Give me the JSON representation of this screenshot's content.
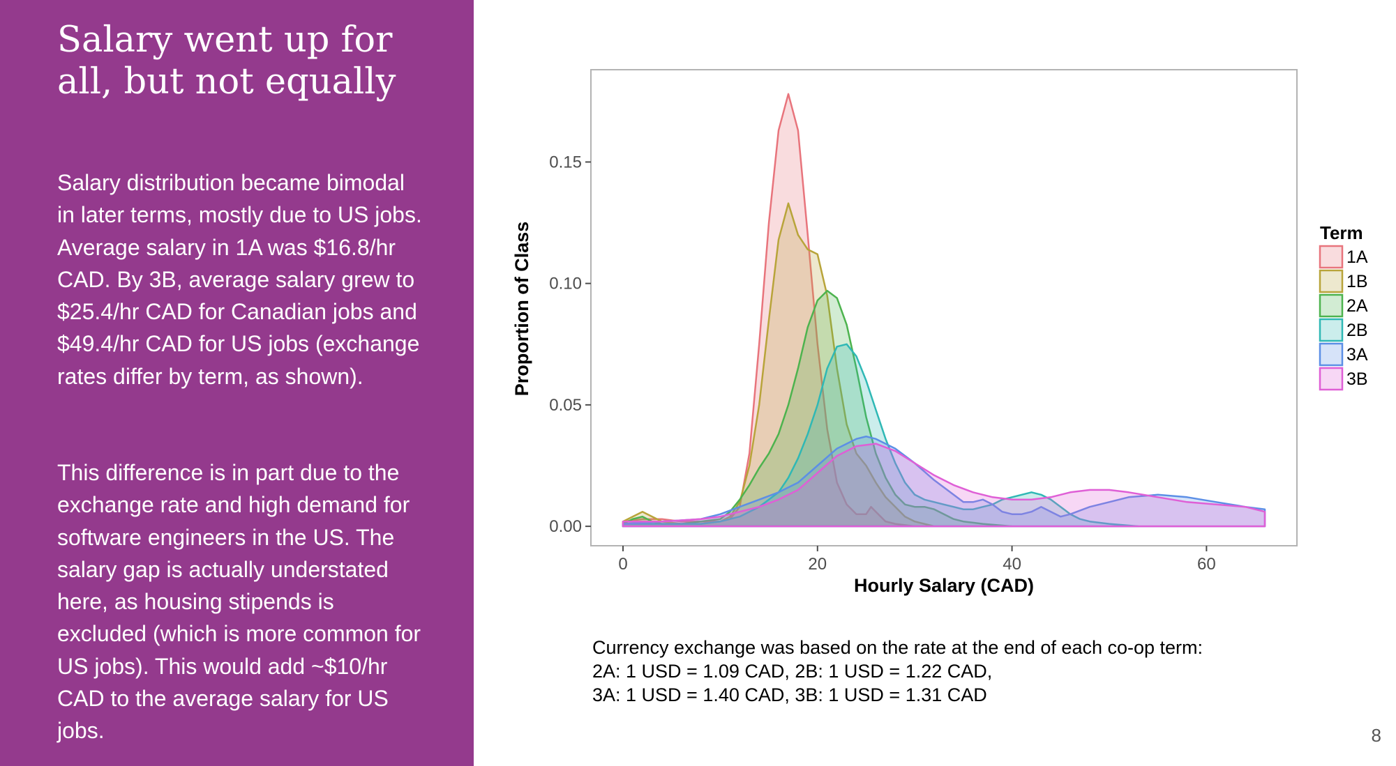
{
  "slide": {
    "title": "Salary went up for all, but not equally",
    "paragraph1": "Salary distribution became bimodal in later terms, mostly due to US jobs. Average salary in 1A was $16.8/hr CAD. By 3B, average salary grew to $25.4/hr CAD for Canadian jobs and $49.4/hr CAD for US jobs (exchange rates differ by term, as shown).",
    "paragraph2": "This difference is in part due to the exchange rate and high demand for software engineers in the US. The salary gap is actually understated here, as housing stipends is excluded (which  is more common for US jobs). This would add ~$10/hr CAD to the average salary for US jobs.",
    "footnote_lines": [
      "Currency exchange was based on the rate at the end of each co-op term:",
      "2A: 1 USD = 1.09 CAD, 2B: 1 USD = 1.22 CAD,",
      "3A: 1 USD = 1.40 CAD, 3B: 1 USD = 1.31 CAD"
    ],
    "page_number": "8",
    "panel_color": "#943a8d"
  },
  "chart_data": {
    "type": "area",
    "title": "",
    "xlabel": "Hourly Salary (CAD)",
    "ylabel": "Proportion of Class",
    "xlim": [
      -3.3,
      69.3
    ],
    "ylim": [
      -0.008,
      0.188
    ],
    "x_ticks": [
      0,
      20,
      40,
      60
    ],
    "x_tick_labels": [
      "0",
      "20",
      "40",
      "60"
    ],
    "y_ticks": [
      0,
      0.05,
      0.1,
      0.15
    ],
    "y_tick_labels": [
      "0.00",
      "0.05",
      "0.10",
      "0.15"
    ],
    "grid": false,
    "legend": {
      "title": "Term",
      "position": "right"
    },
    "series": [
      {
        "name": "1A",
        "color": "#e8747c",
        "points": [
          [
            0,
            0.002
          ],
          [
            2,
            0.003
          ],
          [
            4,
            0.003
          ],
          [
            6,
            0.002
          ],
          [
            8,
            0.002
          ],
          [
            10,
            0.002
          ],
          [
            11,
            0.003
          ],
          [
            12,
            0.008
          ],
          [
            13,
            0.03
          ],
          [
            14,
            0.075
          ],
          [
            15,
            0.125
          ],
          [
            16,
            0.163
          ],
          [
            17,
            0.178
          ],
          [
            18,
            0.163
          ],
          [
            19,
            0.12
          ],
          [
            20,
            0.075
          ],
          [
            21,
            0.04
          ],
          [
            22,
            0.018
          ],
          [
            23,
            0.009
          ],
          [
            24,
            0.005
          ],
          [
            25,
            0.005
          ],
          [
            25.5,
            0.008
          ],
          [
            26,
            0.006
          ],
          [
            27,
            0.002
          ],
          [
            28,
            0.001
          ],
          [
            30,
            0.0
          ]
        ]
      },
      {
        "name": "1B",
        "color": "#b8a43a",
        "points": [
          [
            0,
            0.002
          ],
          [
            1,
            0.004
          ],
          [
            2,
            0.006
          ],
          [
            3,
            0.004
          ],
          [
            4,
            0.002
          ],
          [
            6,
            0.001
          ],
          [
            8,
            0.001
          ],
          [
            10,
            0.002
          ],
          [
            11,
            0.004
          ],
          [
            12,
            0.01
          ],
          [
            13,
            0.025
          ],
          [
            14,
            0.05
          ],
          [
            15,
            0.085
          ],
          [
            16,
            0.118
          ],
          [
            17,
            0.133
          ],
          [
            18,
            0.12
          ],
          [
            19,
            0.114
          ],
          [
            20,
            0.112
          ],
          [
            21,
            0.095
          ],
          [
            22,
            0.065
          ],
          [
            23,
            0.042
          ],
          [
            24,
            0.03
          ],
          [
            25,
            0.025
          ],
          [
            26,
            0.018
          ],
          [
            27,
            0.012
          ],
          [
            28,
            0.008
          ],
          [
            29,
            0.004
          ],
          [
            30,
            0.002
          ],
          [
            32,
            0.0
          ]
        ]
      },
      {
        "name": "2A",
        "color": "#4db34e",
        "points": [
          [
            0,
            0.001
          ],
          [
            1,
            0.003
          ],
          [
            2,
            0.004
          ],
          [
            3,
            0.002
          ],
          [
            4,
            0.001
          ],
          [
            6,
            0.001
          ],
          [
            8,
            0.002
          ],
          [
            10,
            0.003
          ],
          [
            11,
            0.006
          ],
          [
            12,
            0.011
          ],
          [
            13,
            0.017
          ],
          [
            14,
            0.024
          ],
          [
            15,
            0.03
          ],
          [
            16,
            0.038
          ],
          [
            17,
            0.05
          ],
          [
            18,
            0.065
          ],
          [
            19,
            0.082
          ],
          [
            20,
            0.093
          ],
          [
            21,
            0.097
          ],
          [
            22,
            0.094
          ],
          [
            23,
            0.083
          ],
          [
            24,
            0.065
          ],
          [
            25,
            0.045
          ],
          [
            26,
            0.03
          ],
          [
            27,
            0.02
          ],
          [
            28,
            0.013
          ],
          [
            29,
            0.009
          ],
          [
            30,
            0.008
          ],
          [
            31,
            0.008
          ],
          [
            32,
            0.007
          ],
          [
            33,
            0.005
          ],
          [
            34,
            0.003
          ],
          [
            35,
            0.002
          ],
          [
            37,
            0.001
          ],
          [
            40,
            0.0
          ]
        ]
      },
      {
        "name": "2B",
        "color": "#2fb8b5",
        "points": [
          [
            0,
            0.001
          ],
          [
            4,
            0.001
          ],
          [
            8,
            0.001
          ],
          [
            10,
            0.002
          ],
          [
            12,
            0.004
          ],
          [
            14,
            0.008
          ],
          [
            16,
            0.014
          ],
          [
            17,
            0.02
          ],
          [
            18,
            0.028
          ],
          [
            19,
            0.038
          ],
          [
            20,
            0.05
          ],
          [
            21,
            0.065
          ],
          [
            22,
            0.074
          ],
          [
            23,
            0.075
          ],
          [
            24,
            0.07
          ],
          [
            25,
            0.06
          ],
          [
            26,
            0.048
          ],
          [
            27,
            0.036
          ],
          [
            28,
            0.026
          ],
          [
            29,
            0.018
          ],
          [
            30,
            0.013
          ],
          [
            31,
            0.011
          ],
          [
            32,
            0.01
          ],
          [
            33,
            0.009
          ],
          [
            34,
            0.008
          ],
          [
            35,
            0.007
          ],
          [
            36,
            0.007
          ],
          [
            37,
            0.008
          ],
          [
            38,
            0.009
          ],
          [
            39,
            0.011
          ],
          [
            40,
            0.012
          ],
          [
            41,
            0.013
          ],
          [
            42,
            0.014
          ],
          [
            43,
            0.013
          ],
          [
            44,
            0.011
          ],
          [
            45,
            0.008
          ],
          [
            46,
            0.005
          ],
          [
            47,
            0.003
          ],
          [
            48,
            0.002
          ],
          [
            50,
            0.001
          ],
          [
            53,
            0.0
          ]
        ]
      },
      {
        "name": "3A",
        "color": "#5c8fe6",
        "points": [
          [
            0,
            0.001
          ],
          [
            4,
            0.002
          ],
          [
            8,
            0.003
          ],
          [
            10,
            0.005
          ],
          [
            12,
            0.008
          ],
          [
            14,
            0.011
          ],
          [
            16,
            0.014
          ],
          [
            18,
            0.018
          ],
          [
            20,
            0.025
          ],
          [
            22,
            0.032
          ],
          [
            24,
            0.036
          ],
          [
            25,
            0.037
          ],
          [
            26,
            0.036
          ],
          [
            28,
            0.032
          ],
          [
            30,
            0.026
          ],
          [
            32,
            0.019
          ],
          [
            34,
            0.013
          ],
          [
            35,
            0.01
          ],
          [
            36,
            0.01
          ],
          [
            37,
            0.011
          ],
          [
            38,
            0.009
          ],
          [
            39,
            0.006
          ],
          [
            40,
            0.005
          ],
          [
            41,
            0.005
          ],
          [
            42,
            0.006
          ],
          [
            43,
            0.008
          ],
          [
            44,
            0.006
          ],
          [
            45,
            0.004
          ],
          [
            46,
            0.005
          ],
          [
            48,
            0.008
          ],
          [
            50,
            0.01
          ],
          [
            52,
            0.012
          ],
          [
            55,
            0.013
          ],
          [
            58,
            0.012
          ],
          [
            61,
            0.01
          ],
          [
            64,
            0.008
          ],
          [
            66,
            0.007
          ],
          [
            66,
            0.0
          ]
        ]
      },
      {
        "name": "3B",
        "color": "#df5fd6",
        "points": [
          [
            0,
            0.002
          ],
          [
            4,
            0.002
          ],
          [
            8,
            0.003
          ],
          [
            10,
            0.004
          ],
          [
            12,
            0.006
          ],
          [
            14,
            0.008
          ],
          [
            16,
            0.011
          ],
          [
            18,
            0.015
          ],
          [
            20,
            0.022
          ],
          [
            22,
            0.029
          ],
          [
            24,
            0.033
          ],
          [
            26,
            0.034
          ],
          [
            28,
            0.031
          ],
          [
            30,
            0.026
          ],
          [
            32,
            0.021
          ],
          [
            34,
            0.017
          ],
          [
            36,
            0.014
          ],
          [
            38,
            0.012
          ],
          [
            40,
            0.011
          ],
          [
            42,
            0.011
          ],
          [
            44,
            0.012
          ],
          [
            46,
            0.014
          ],
          [
            48,
            0.015
          ],
          [
            50,
            0.015
          ],
          [
            52,
            0.014
          ],
          [
            55,
            0.012
          ],
          [
            58,
            0.01
          ],
          [
            61,
            0.009
          ],
          [
            64,
            0.008
          ],
          [
            66,
            0.006
          ],
          [
            66,
            0.0
          ]
        ]
      }
    ]
  }
}
